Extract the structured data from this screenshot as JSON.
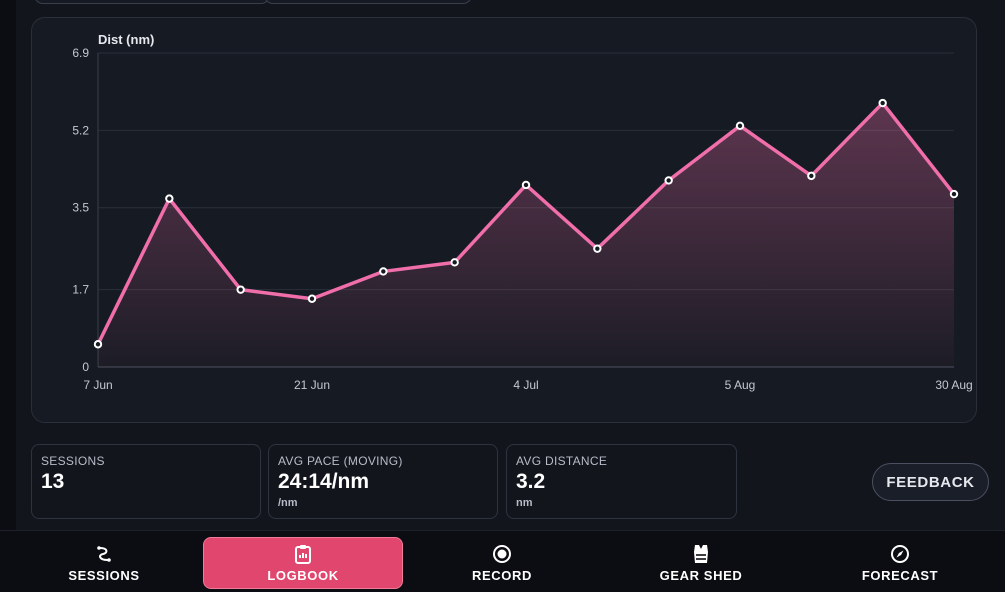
{
  "chart_data": {
    "type": "area",
    "ylabel": "Dist (nm)",
    "yticks": [
      "6.9",
      "5.2",
      "3.5",
      "1.7",
      "0"
    ],
    "ytick_values": [
      6.9,
      5.2,
      3.5,
      1.7,
      0
    ],
    "ylim": [
      0,
      6.9
    ],
    "xticks": [
      "7 Jun",
      "21 Jun",
      "4 Jul",
      "5 Aug",
      "30 Aug"
    ],
    "xtick_index": [
      0,
      3,
      6,
      9,
      12
    ],
    "values": [
      0.5,
      3.7,
      1.7,
      1.5,
      2.1,
      2.3,
      4.0,
      2.6,
      4.1,
      5.3,
      4.2,
      5.8,
      3.8
    ],
    "grid": true,
    "line_color": "#f06eaa",
    "fill_color": "#f06eaa"
  },
  "stats": [
    {
      "label": "SESSIONS",
      "value": "13",
      "unit": ""
    },
    {
      "label": "AVG PACE (MOVING)",
      "value": "24:14/nm",
      "unit": "/nm"
    },
    {
      "label": "AVG DISTANCE",
      "value": "3.2",
      "unit": "nm"
    }
  ],
  "feedback_label": "FEEDBACK",
  "nav": [
    {
      "label": "SESSIONS",
      "icon": "route-icon"
    },
    {
      "label": "LOGBOOK",
      "icon": "clipboard-icon"
    },
    {
      "label": "RECORD",
      "icon": "record-icon"
    },
    {
      "label": "GEAR SHED",
      "icon": "life-vest-icon"
    },
    {
      "label": "FORECAST",
      "icon": "compass-icon"
    }
  ],
  "colors": {
    "accent": "#e0466e",
    "background": "#0b0d12",
    "card": "#161a22"
  }
}
